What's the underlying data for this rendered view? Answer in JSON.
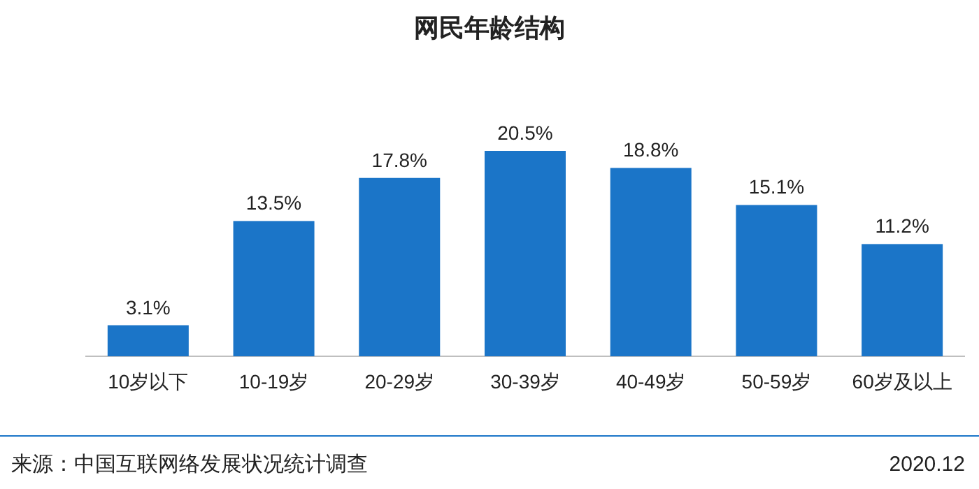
{
  "chart_data": {
    "type": "bar",
    "title": "网民年龄结构",
    "categories": [
      "10岁以下",
      "10-19岁",
      "20-29岁",
      "30-39岁",
      "40-49岁",
      "50-59岁",
      "60岁及以上"
    ],
    "values": [
      3.1,
      13.5,
      17.8,
      20.5,
      18.8,
      15.1,
      11.2
    ],
    "value_labels": [
      "3.1%",
      "13.5%",
      "17.8%",
      "20.5%",
      "18.8%",
      "15.1%",
      "11.2%"
    ],
    "color": "#1b75c8",
    "annotations": [
      "来源：中国互联网络发展状况统计调查",
      "2020.12"
    ]
  }
}
